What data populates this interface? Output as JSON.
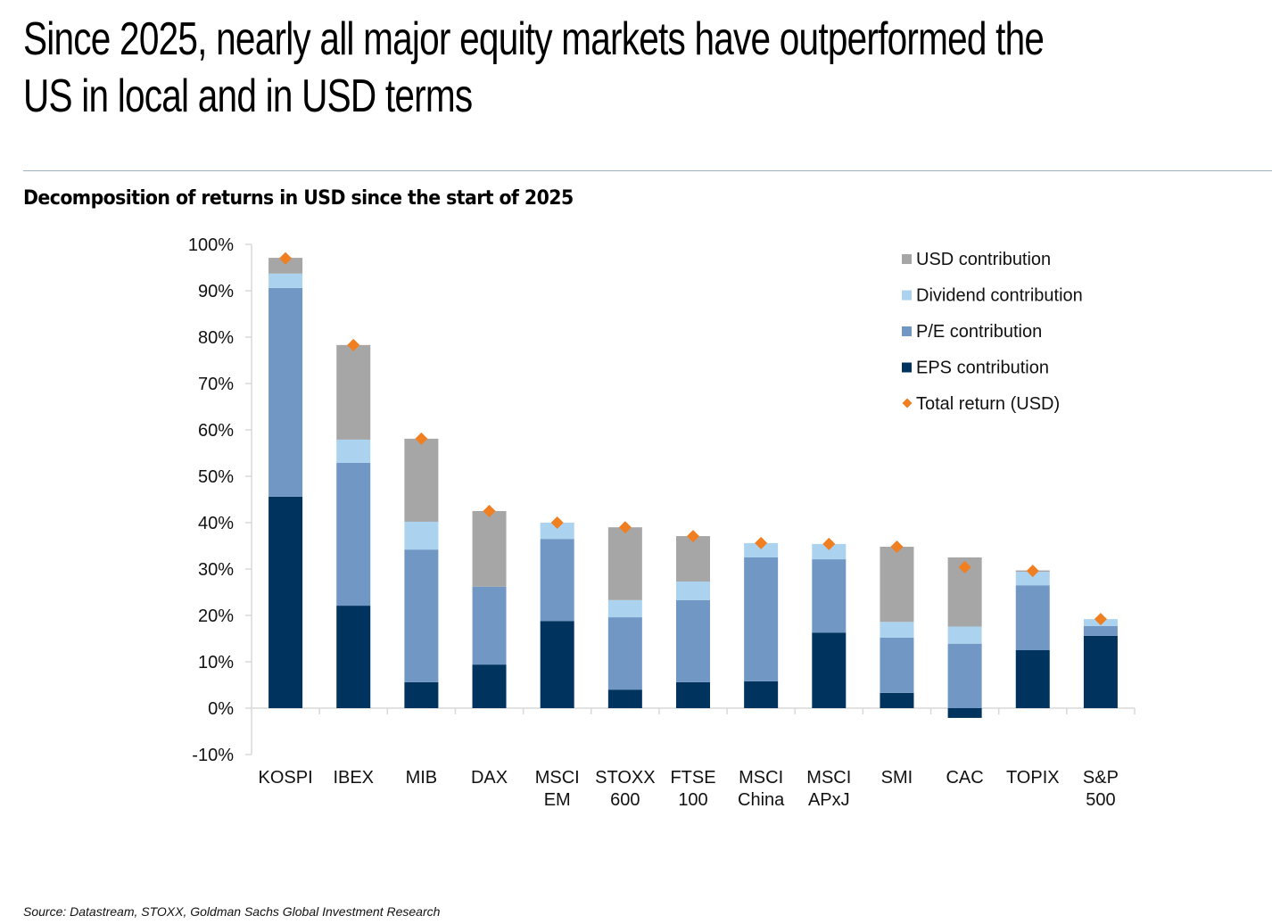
{
  "header": {
    "headline_line1": "Since 2025, nearly all major equity markets have outperformed the",
    "headline_line2": "US in local and in USD terms",
    "subtitle": "Decomposition of returns in USD since the start of 2025"
  },
  "footer": {
    "source": "Source: Datastream, STOXX, Goldman Sachs Global Investment Research"
  },
  "chart_data": {
    "type": "bar",
    "stacked": true,
    "title": "Decomposition of returns in USD since the start of 2025",
    "xlabel": "",
    "ylabel": "",
    "ylim": [
      -10,
      100
    ],
    "yticks": [
      -10,
      0,
      10,
      20,
      30,
      40,
      50,
      60,
      70,
      80,
      90,
      100
    ],
    "ytick_format": "percent",
    "grid": false,
    "legend_position": "top-right",
    "categories": [
      [
        "KOSPI"
      ],
      [
        "IBEX"
      ],
      [
        "MIB"
      ],
      [
        "DAX"
      ],
      [
        "MSCI",
        "EM"
      ],
      [
        "STOXX",
        "600"
      ],
      [
        "FTSE",
        "100"
      ],
      [
        "MSCI",
        "China"
      ],
      [
        "MSCI",
        "APxJ"
      ],
      [
        "SMI"
      ],
      [
        "CAC"
      ],
      [
        "TOPIX"
      ],
      [
        "S&P",
        "500"
      ]
    ],
    "series": [
      {
        "name": "EPS contribution",
        "color": "#00335e",
        "values": [
          45.6,
          22.1,
          5.6,
          9.4,
          18.8,
          4.0,
          5.6,
          5.8,
          16.3,
          3.3,
          -2.1,
          12.5,
          15.6
        ]
      },
      {
        "name": "P/E contribution",
        "color": "#7198c5",
        "values": [
          45.0,
          30.8,
          28.6,
          16.8,
          17.7,
          15.6,
          17.7,
          26.7,
          15.8,
          11.9,
          13.9,
          14.0,
          2.1
        ]
      },
      {
        "name": "Dividend contribution",
        "color": "#abd2ef",
        "values": [
          3.1,
          5.0,
          6.0,
          0.0,
          3.5,
          3.7,
          4.0,
          3.1,
          3.3,
          3.4,
          3.7,
          2.9,
          1.5
        ]
      },
      {
        "name": "USD contribution",
        "color": "#a6a6a6",
        "values": [
          3.4,
          20.4,
          17.9,
          16.3,
          0.0,
          15.7,
          9.8,
          0.0,
          0.0,
          16.2,
          14.9,
          0.3,
          0.0
        ]
      }
    ],
    "markers": {
      "name": "Total return (USD)",
      "color": "#f07f22",
      "shape": "diamond",
      "values": [
        97.0,
        78.3,
        58.1,
        42.5,
        40.0,
        39.0,
        37.1,
        35.6,
        35.4,
        34.8,
        30.4,
        29.6,
        19.2
      ]
    },
    "legend": [
      {
        "label": "USD contribution",
        "color": "#a6a6a6",
        "shape": "square"
      },
      {
        "label": "Dividend contribution",
        "color": "#abd2ef",
        "shape": "square"
      },
      {
        "label": "P/E contribution",
        "color": "#7198c5",
        "shape": "square"
      },
      {
        "label": "EPS contribution",
        "color": "#00335e",
        "shape": "square"
      },
      {
        "label": "Total return (USD)",
        "color": "#f07f22",
        "shape": "diamond"
      }
    ]
  }
}
